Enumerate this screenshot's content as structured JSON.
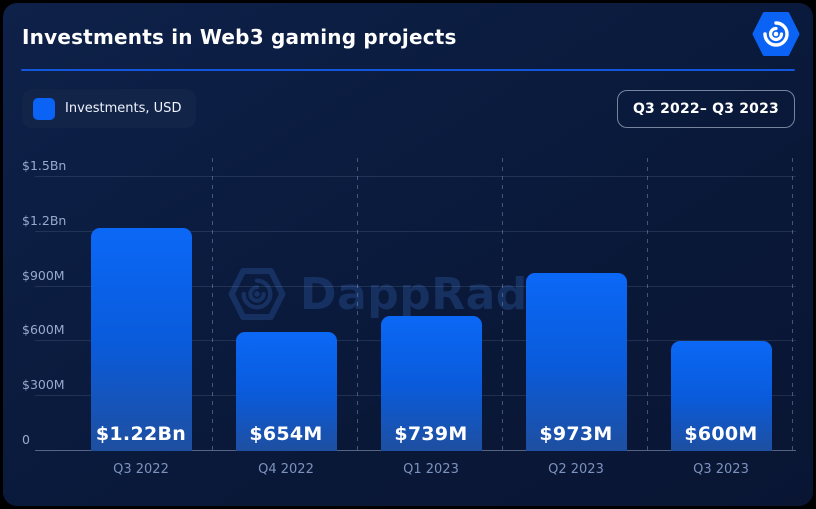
{
  "header": {
    "title": "Investments in Web3 gaming projects",
    "logo_icon": "dappradar-hexagon-radar-logo"
  },
  "legend": {
    "label": "Investments, USD",
    "swatch_color": "#0b63f5"
  },
  "range_badge": {
    "label": "Q3 2022– Q3 2023"
  },
  "watermark": {
    "text": "DappRadar",
    "icon": "dappradar-hexagon-radar-icon"
  },
  "colors": {
    "background": "#0a1a3a",
    "accent_blue": "#0b63f5",
    "divider_blue": "#1156dd",
    "bar_gradient_top": "#0b68f6",
    "bar_gradient_bottom": "#1e4fa0",
    "y_label": "#97a9cd",
    "x_label": "#7c92be"
  },
  "chart_data": {
    "type": "bar",
    "title": "Investments in Web3 gaming projects",
    "legend_entry": "Investments, USD",
    "period": "Q3 2022– Q3 2023",
    "unit": "USD, millions",
    "categories": [
      "Q3 2022",
      "Q4 2022",
      "Q1 2023",
      "Q2 2023",
      "Q3 2023"
    ],
    "values": [
      1220,
      654,
      739,
      973,
      600
    ],
    "value_labels": [
      "$1.22Bn",
      "$654M",
      "$739M",
      "$973M",
      "$600M"
    ],
    "ylim": [
      0,
      1500
    ],
    "yticks": [
      {
        "value": 1500,
        "label": "$1.5Bn"
      },
      {
        "value": 1200,
        "label": "$1.2Bn"
      },
      {
        "value": 900,
        "label": "$900M"
      },
      {
        "value": 600,
        "label": "$600M"
      },
      {
        "value": 300,
        "label": "$300M"
      },
      {
        "value": 0,
        "label": "0"
      }
    ],
    "grid": {
      "horizontal_solid": true,
      "vertical_dashed": true
    },
    "legend_position": "top-left",
    "value_label_position": "inside-bottom"
  }
}
